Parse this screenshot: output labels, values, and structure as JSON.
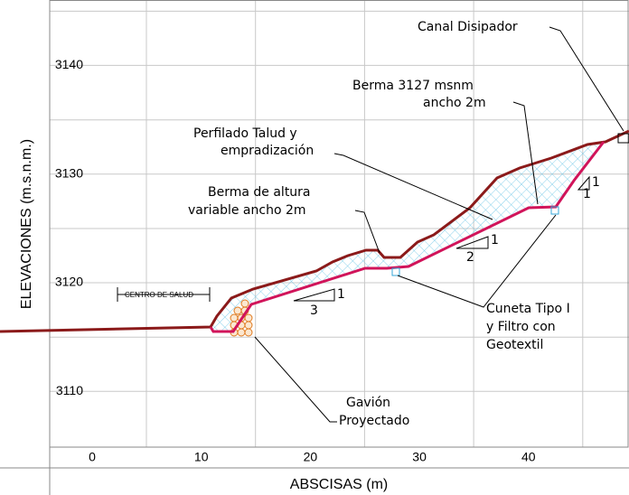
{
  "axes": {
    "x_label": "ABSCISAS (m)",
    "y_label": "ELEVACIONES (m.s.n.m.)",
    "x_ticks": [
      0,
      10,
      20,
      30,
      40
    ],
    "y_ticks": [
      3110,
      3120,
      3130,
      3140
    ]
  },
  "annotations": {
    "canal": "Canal Disipador",
    "berma_top": [
      "Berma 3127 msnm",
      "ancho 2m"
    ],
    "perfilado": [
      "Perfilado Talud y",
      "empradización"
    ],
    "berma_var": [
      "Berma de altura",
      "variable ancho 2m"
    ],
    "cuneta": [
      "Cuneta Tipo I",
      "y Filtro con",
      "Geotextil"
    ],
    "gavion": [
      "Gavión",
      "Proyectado"
    ],
    "centro": "CENTRO DE SALUD"
  },
  "slopes": [
    {
      "rise": "1",
      "run": "3"
    },
    {
      "rise": "1",
      "run": "2"
    },
    {
      "rise": "1",
      "run": "1"
    }
  ]
}
